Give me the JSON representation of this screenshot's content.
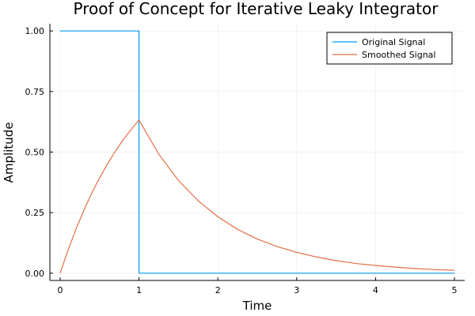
{
  "chart_data": {
    "type": "line",
    "title": "Proof of Concept for Iterative Leaky Integrator",
    "xlabel": "Time",
    "ylabel": "Amplitude",
    "xlim": [
      -0.13,
      5.13
    ],
    "ylim": [
      -0.03,
      1.03
    ],
    "x_ticks": [
      0,
      1,
      2,
      3,
      4,
      5
    ],
    "x_tick_labels": [
      "0",
      "1",
      "2",
      "3",
      "4",
      "5"
    ],
    "y_ticks": [
      0,
      0.25,
      0.5,
      0.75,
      1.0
    ],
    "y_tick_labels": [
      "0.00",
      "0.25",
      "0.50",
      "0.75",
      "1.00"
    ],
    "grid": true,
    "legend_position": "top-right",
    "series": [
      {
        "name": "Original Signal",
        "color": "#009AF9",
        "x": [
          0,
          1,
          1,
          5
        ],
        "y": [
          1,
          1,
          0,
          0
        ]
      },
      {
        "name": "Smoothed Signal",
        "color": "#E26F46",
        "x": [
          0,
          0.1,
          0.2,
          0.3,
          0.4,
          0.5,
          0.6,
          0.7,
          0.8,
          0.9,
          1.0,
          1.25,
          1.5,
          1.75,
          2.0,
          2.25,
          2.5,
          2.75,
          3.0,
          3.25,
          3.5,
          3.75,
          4.0,
          4.25,
          4.5,
          4.75,
          5.0
        ],
        "y": [
          0,
          0.095,
          0.181,
          0.259,
          0.33,
          0.393,
          0.451,
          0.503,
          0.551,
          0.593,
          0.632,
          0.492,
          0.383,
          0.299,
          0.233,
          0.181,
          0.141,
          0.11,
          0.086,
          0.067,
          0.052,
          0.04,
          0.032,
          0.025,
          0.019,
          0.015,
          0.012
        ]
      }
    ]
  }
}
